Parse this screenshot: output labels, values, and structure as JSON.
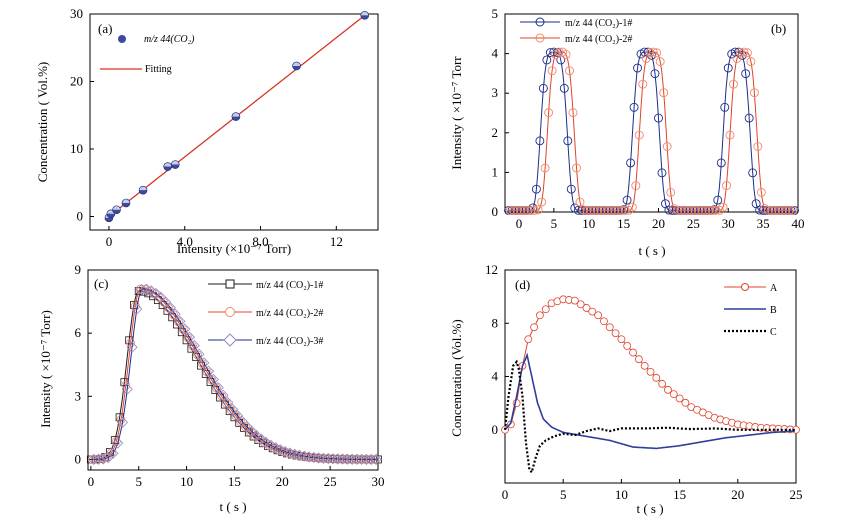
{
  "chart_data": [
    {
      "panel": "(a)",
      "type": "scatter",
      "xlabel": "Intensity (×10⁻⁷ Torr)",
      "ylabel": "Concentration ( Vol.%)",
      "xlim": [
        -1,
        14.2
      ],
      "ylim": [
        -2,
        30
      ],
      "xticks": [
        "0",
        "4.0",
        "8.0",
        "12"
      ],
      "xtick_values": [
        0,
        4,
        8,
        12
      ],
      "yticks": [
        "0",
        "10",
        "20",
        "30"
      ],
      "ytick_values": [
        0,
        10,
        20,
        30
      ],
      "legend": [
        "m/z 44(CO₂)",
        "Fitting"
      ],
      "series": [
        {
          "name": "m/z 44(CO₂)",
          "x": [
            0,
            0.1,
            0.4,
            0.9,
            1.8,
            3.1,
            3.5,
            6.7,
            9.9,
            13.5
          ],
          "y": [
            -0.2,
            0.4,
            1.0,
            2.0,
            3.9,
            7.4,
            7.7,
            14.8,
            22.3,
            29.8
          ]
        },
        {
          "name": "Fitting",
          "x": [
            0,
            13.5
          ],
          "y": [
            0,
            29.8
          ]
        }
      ]
    },
    {
      "panel": "(b)",
      "type": "line",
      "xlabel": "t ( s )",
      "ylabel": "Intensity ( ×10⁻⁷ Torr",
      "xlim": [
        -2,
        40
      ],
      "ylim": [
        0,
        5
      ],
      "xticks": [
        "0",
        "5",
        "10",
        "15",
        "20",
        "25",
        "30",
        "35",
        "40"
      ],
      "xtick_values": [
        0,
        5,
        10,
        15,
        20,
        25,
        30,
        35,
        40
      ],
      "yticks": [
        "0",
        "1",
        "2",
        "3",
        "4",
        "5"
      ],
      "ytick_values": [
        0,
        1,
        2,
        3,
        4,
        5
      ],
      "legend": [
        "m/z 44 (CO₂)-1#",
        "m/z 44 (CO₂)-2#"
      ],
      "series": [
        {
          "name": "m/z 44 (CO₂)-1#",
          "peak_centers": [
            5.0,
            18.2,
            31.2
          ],
          "peak_height": 4.0
        },
        {
          "name": "m/z 44 (CO₂)-2#",
          "peak_centers": [
            6.0,
            19.2,
            32.2
          ],
          "peak_height": 4.0
        }
      ]
    },
    {
      "panel": "(c)",
      "type": "line",
      "xlabel": "t ( s )",
      "ylabel": "Intensity ( ×10⁻⁷ Torr)",
      "xlim": [
        -0.3,
        30
      ],
      "ylim": [
        -0.5,
        9
      ],
      "xticks": [
        "0",
        "5",
        "10",
        "15",
        "20",
        "25",
        "30"
      ],
      "xtick_values": [
        0,
        5,
        10,
        15,
        20,
        25,
        30
      ],
      "yticks": [
        "0",
        "3",
        "6",
        "9"
      ],
      "ytick_values": [
        0,
        3,
        6,
        9
      ],
      "legend": [
        "m/z 44 (CO₂)-1#",
        "m/z 44 (CO₂)-2#",
        "m/z 44 (CO₂)-3#"
      ],
      "series": [
        {
          "name": "m/z 44 (CO₂)-1#",
          "peak_x": 5.0,
          "peak_y": 8.0
        },
        {
          "name": "m/z 44 (CO₂)-2#",
          "peak_x": 5.2,
          "peak_y": 8.1
        },
        {
          "name": "m/z 44 (CO₂)-3#",
          "peak_x": 5.4,
          "peak_y": 8.1
        }
      ]
    },
    {
      "panel": "(d)",
      "type": "line",
      "xlabel": "t ( s )",
      "ylabel": "Concentration (Vol.%)",
      "xlim": [
        0,
        25
      ],
      "ylim": [
        -4,
        12
      ],
      "xticks": [
        "0",
        "5",
        "10",
        "15",
        "20",
        "25"
      ],
      "xtick_values": [
        0,
        5,
        10,
        15,
        20,
        25
      ],
      "yticks": [
        "0",
        "4",
        "8",
        "12"
      ],
      "ytick_values": [
        0,
        4,
        8,
        12
      ],
      "legend": [
        "A",
        "B",
        "C"
      ],
      "series": [
        {
          "name": "A",
          "x": [
            0,
            0.5,
            1,
            1.5,
            2,
            3,
            4,
            5,
            6,
            8,
            10,
            12,
            14,
            16,
            18,
            20,
            22,
            24,
            25
          ],
          "y": [
            0,
            0.4,
            2,
            4.8,
            6.8,
            8.6,
            9.5,
            9.8,
            9.7,
            8.6,
            6.8,
            4.8,
            3.0,
            1.7,
            0.9,
            0.4,
            0.15,
            0.05,
            0
          ]
        },
        {
          "name": "B",
          "x": [
            0,
            0.5,
            1,
            1.5,
            1.9,
            2.3,
            2.8,
            3.3,
            4,
            5,
            7,
            9,
            11,
            13,
            15,
            17,
            19,
            21,
            23,
            25
          ],
          "y": [
            0,
            0.5,
            2.5,
            4.8,
            5.6,
            4.0,
            2.0,
            0.8,
            0.2,
            -0.2,
            -0.5,
            -0.8,
            -1.3,
            -1.4,
            -1.2,
            -0.9,
            -0.6,
            -0.4,
            -0.2,
            -0.1
          ]
        },
        {
          "name": "C",
          "x": [
            0,
            0.3,
            0.7,
            1.0,
            1.2,
            1.5,
            1.8,
            2.1,
            2.3,
            2.6,
            3.0,
            3.5,
            4.2,
            5,
            6,
            7,
            8,
            9,
            10,
            12,
            14,
            16,
            18,
            20,
            22,
            25
          ],
          "y": [
            0,
            2.5,
            4.8,
            5.1,
            4.5,
            2.5,
            -1.0,
            -3.0,
            -3.2,
            -2.2,
            -1.2,
            -0.8,
            -0.5,
            -0.3,
            -0.4,
            -0.1,
            0.1,
            -0.1,
            0.1,
            0.1,
            0.15,
            0.05,
            0.1,
            0.0,
            0.0,
            0.0
          ]
        }
      ]
    }
  ],
  "labels": {
    "a": {
      "letter": "(a)",
      "legend1": "m/z 44(CO₂)",
      "legend2": "Fitting",
      "ylabel": "Concentration ( Vol.%)",
      "xlabel": "Intensity (×10⁻⁷  Torr)"
    },
    "b": {
      "letter": "(b)",
      "legend1": "m/z 44 (CO₂)-1#",
      "legend2": "m/z 44 (CO₂)-2#",
      "ylabel": "Intensity ( ×10⁻⁷ Torr",
      "xlabel": "t ( s )"
    },
    "c": {
      "letter": "(c)",
      "legend1": "m/z 44 (CO₂)-1#",
      "legend2": "m/z 44 (CO₂)-2#",
      "legend3": "m/z 44 (CO₂)-3#",
      "ylabel": "Intensity ( ×10⁻⁷ Torr)",
      "xlabel": "t ( s )"
    },
    "d": {
      "letter": "(d)",
      "legend1": "A",
      "legend2": "B",
      "legend3": "C",
      "ylabel": "Concentration (Vol.%)",
      "xlabel": "t ( s )"
    }
  },
  "colors": {
    "blue": "#3b4aa0",
    "red": "#e0442e",
    "orange": "#f08a6a",
    "navy": "#1e2e8a",
    "dark": "#1a1a1a",
    "purple": "#8f86c8"
  }
}
